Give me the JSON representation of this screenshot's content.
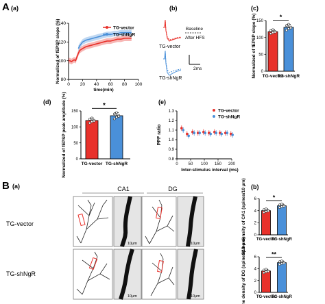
{
  "colors": {
    "red": "#e8312b",
    "blue": "#4a90d9",
    "black": "#000000"
  },
  "figure": {
    "panel_A": "A",
    "panel_B": "B",
    "sub_a": "(a)",
    "sub_b": "(b)",
    "sub_c": "(c)",
    "sub_d": "(d)",
    "sub_e": "(e)",
    "subB_a": "(a)",
    "subB_b": "(b)"
  },
  "traces": {
    "label_vector": "TG-vector",
    "label_shngr": "TG-shNgR",
    "legend_baseline": "Baseline",
    "legend_hfs": "After HFS",
    "scale": "2ms"
  },
  "images": {
    "col_ca1": "CA1",
    "col_dg": "DG",
    "row_vector": "TG-vector",
    "row_shngr": "TG-shNgR",
    "scale": "10μm"
  },
  "chart_data": [
    {
      "id": "A_a",
      "type": "line",
      "ylabel": "Normalized of fEPSP slope (%)",
      "xlabel": "time(min)",
      "xlim": [
        0,
        100
      ],
      "ylim": [
        80,
        140
      ],
      "xticks": [
        "0",
        "20",
        "40",
        "60",
        "80",
        "100"
      ],
      "yticks": [
        "80",
        "100",
        "120",
        "140"
      ],
      "legend": "top-right",
      "series": [
        {
          "name": "TG-vector",
          "color": "#e8312b",
          "x": [
            0,
            2,
            4,
            6,
            8,
            10,
            12,
            14,
            16,
            18,
            20,
            25,
            30,
            35,
            40,
            45,
            50,
            55,
            60,
            65,
            70,
            75,
            80,
            85,
            90
          ],
          "y": [
            100,
            100,
            99,
            100,
            101,
            100,
            104,
            108,
            111,
            112,
            113,
            115,
            116,
            117,
            118,
            119,
            120,
            121,
            121,
            122,
            123,
            123,
            124,
            124,
            124
          ]
        },
        {
          "name": "TG-shNgR",
          "color": "#4a90d9",
          "x": [
            14,
            16,
            18,
            20,
            25,
            30,
            35,
            40,
            45,
            50,
            55,
            60,
            65,
            70,
            75,
            80,
            85,
            90
          ],
          "y": [
            113,
            116,
            118,
            120,
            122,
            123,
            124,
            125,
            126,
            127,
            128,
            128,
            129,
            129,
            130,
            130,
            130,
            130
          ]
        }
      ]
    },
    {
      "id": "A_c",
      "type": "bar",
      "ylabel": "Normalized of fEPSP slope (%)",
      "categories": [
        "TG-vector",
        "TG-shNgR"
      ],
      "values": [
        117,
        130
      ],
      "errors": [
        6,
        9
      ],
      "colors": [
        "#e8312b",
        "#4a90d9"
      ],
      "ylim": [
        0,
        150
      ],
      "yticks": [
        "0",
        "50",
        "100",
        "150"
      ],
      "significance": "*"
    },
    {
      "id": "A_d",
      "type": "bar",
      "ylabel": "Normalized of fEPSP peak amplitude (%)",
      "categories": [
        "TG-vector",
        "TG-shNgR"
      ],
      "values": [
        120,
        135
      ],
      "errors": [
        8,
        10
      ],
      "colors": [
        "#e8312b",
        "#4a90d9"
      ],
      "ylim": [
        0,
        150
      ],
      "yticks": [
        "0",
        "50",
        "100",
        "150"
      ],
      "significance": "*"
    },
    {
      "id": "A_e",
      "type": "scatter",
      "ylabel": "PPF ratio",
      "xlabel": "Inter-stimulus interval  (ms)",
      "xlim": [
        0,
        200
      ],
      "ylim": [
        0.8,
        1.3
      ],
      "xticks": [
        "0",
        "50",
        "100",
        "150",
        "200"
      ],
      "yticks": [
        "0.8",
        "0.9",
        "1.0",
        "1.1",
        "1.2",
        "1.3"
      ],
      "legend": "top-right",
      "series": [
        {
          "name": "TG-vector",
          "color": "#e8312b",
          "x": [
            20,
            40,
            60,
            80,
            100,
            120,
            140,
            160,
            180,
            200
          ],
          "y": [
            1.12,
            1.06,
            1.08,
            1.07,
            1.08,
            1.07,
            1.08,
            1.07,
            1.07,
            1.06
          ]
        },
        {
          "name": "TG-shNgR",
          "color": "#4a90d9",
          "x": [
            20,
            40,
            60,
            80,
            100,
            120,
            140,
            160,
            180,
            200
          ],
          "y": [
            1.1,
            1.04,
            1.07,
            1.07,
            1.07,
            1.06,
            1.07,
            1.06,
            1.07,
            1.05
          ]
        }
      ]
    },
    {
      "id": "B_b_ca1",
      "type": "bar",
      "ylabel": "Spine density of CA1 (spines/10 μm)",
      "categories": [
        "TG-vector",
        "TG-shNgR"
      ],
      "values": [
        4.0,
        4.8
      ],
      "errors": [
        0.3,
        0.3
      ],
      "colors": [
        "#e8312b",
        "#4a90d9"
      ],
      "ylim": [
        0,
        6
      ],
      "yticks": [
        "0",
        "2",
        "4",
        "6"
      ],
      "significance": "*"
    },
    {
      "id": "B_b_dg",
      "type": "bar",
      "ylabel": "Spine density of DG (spines/10 μm)",
      "categories": [
        "TG-vector",
        "TG-shNgR"
      ],
      "values": [
        3.6,
        5.0
      ],
      "errors": [
        0.3,
        0.3
      ],
      "colors": [
        "#e8312b",
        "#4a90d9"
      ],
      "ylim": [
        0,
        6
      ],
      "yticks": [
        "0",
        "2",
        "4",
        "6"
      ],
      "significance": "**"
    }
  ]
}
